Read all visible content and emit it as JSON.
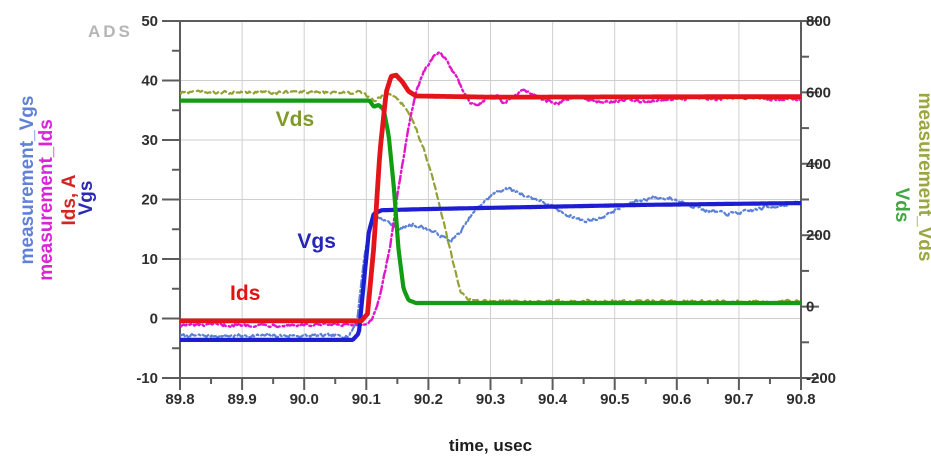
{
  "logo": "ADS",
  "colors": {
    "background": "#ffffff",
    "axis": "#5c5c5c",
    "grid": "#cfcfcf",
    "tick_text": "#2e2e2e",
    "logo_gray": "#b5b5b5"
  },
  "axes": {
    "x": {
      "label": "time, usec",
      "min": 89.8,
      "max": 90.8,
      "ticks": [
        "89.8",
        "89.9",
        "90.0",
        "90.1",
        "90.2",
        "90.3",
        "90.4",
        "90.5",
        "90.6",
        "90.7",
        "90.8"
      ],
      "minor_step": 0.05
    },
    "y_left": {
      "min": -10,
      "max": 50,
      "ticks": [
        "50",
        "40",
        "30",
        "20",
        "10",
        "0",
        "-10"
      ],
      "minor_step": 5
    },
    "y_right": {
      "min": -200,
      "max": 800,
      "ticks": [
        "800",
        "600",
        "400",
        "200",
        "0",
        "-200"
      ],
      "minor_step": 100
    }
  },
  "side_labels": {
    "left": [
      {
        "text": "measurement_Vgs",
        "color": "#6181d9"
      },
      {
        "text": "measurement_Ids",
        "color": "#d924d9"
      },
      {
        "text": "Ids, A",
        "color": "#d42424"
      },
      {
        "text": "Vgs",
        "color": "#2a2ab6"
      }
    ],
    "right": [
      {
        "text": "measurement_Vds",
        "color": "#9aa63e"
      },
      {
        "text": "Vds",
        "color": "#43a543"
      }
    ]
  },
  "annotations": [
    {
      "text": "Vds",
      "color": "#7f9a2b",
      "t": 89.985,
      "value": 33.5,
      "axis": "left"
    },
    {
      "text": "Vgs",
      "color": "#2525b8",
      "t": 90.02,
      "value": 13.0,
      "axis": "left"
    },
    {
      "text": "Ids",
      "color": "#e31212",
      "t": 89.905,
      "value": 4.3,
      "axis": "left"
    }
  ],
  "chart_data": {
    "type": "line",
    "title": "",
    "xlabel": "time, usec",
    "x_range": [
      89.8,
      90.8
    ],
    "y_left_range": [
      -10,
      50
    ],
    "y_right_range": [
      -200,
      800
    ],
    "grid": true,
    "series": [
      {
        "name": "measurement_Vgs",
        "axis": "left",
        "color": "#5b80d8",
        "width": 2.2,
        "dash": "7 3 2 3",
        "noise": 0.45,
        "points": [
          [
            89.8,
            -2.9
          ],
          [
            90.072,
            -2.9
          ],
          [
            90.085,
            -0.5
          ],
          [
            90.095,
            9
          ],
          [
            90.105,
            15.5
          ],
          [
            90.115,
            17.3
          ],
          [
            90.135,
            16.2
          ],
          [
            90.155,
            15.0
          ],
          [
            90.175,
            15.8
          ],
          [
            90.195,
            15.2
          ],
          [
            90.215,
            14.2
          ],
          [
            90.235,
            13.0
          ],
          [
            90.252,
            14.5
          ],
          [
            90.268,
            17.2
          ],
          [
            90.285,
            19.2
          ],
          [
            90.305,
            21.0
          ],
          [
            90.325,
            21.9
          ],
          [
            90.345,
            21.2
          ],
          [
            90.362,
            20.4
          ],
          [
            90.378,
            19.9
          ],
          [
            90.395,
            19.0
          ],
          [
            90.42,
            17.6
          ],
          [
            90.45,
            16.4
          ],
          [
            90.475,
            16.8
          ],
          [
            90.5,
            18.2
          ],
          [
            90.53,
            19.6
          ],
          [
            90.56,
            20.3
          ],
          [
            90.59,
            20.2
          ],
          [
            90.62,
            19.2
          ],
          [
            90.65,
            18.1
          ],
          [
            90.68,
            17.6
          ],
          [
            90.71,
            17.9
          ],
          [
            90.74,
            18.6
          ],
          [
            90.77,
            19.1
          ],
          [
            90.8,
            19.5
          ]
        ]
      },
      {
        "name": "measurement_Ids",
        "axis": "left",
        "color": "#e414c9",
        "width": 2.4,
        "dash": "8 3 2 3",
        "noise": 0.4,
        "points": [
          [
            89.8,
            -1.1
          ],
          [
            90.096,
            -1.1
          ],
          [
            90.108,
            -0.3
          ],
          [
            90.122,
            3.5
          ],
          [
            90.138,
            12
          ],
          [
            90.152,
            22
          ],
          [
            90.166,
            31
          ],
          [
            90.18,
            38
          ],
          [
            90.195,
            42
          ],
          [
            90.208,
            44.2
          ],
          [
            90.218,
            44.6
          ],
          [
            90.228,
            43.8
          ],
          [
            90.24,
            41.5
          ],
          [
            90.255,
            38.5
          ],
          [
            90.268,
            36.3
          ],
          [
            90.282,
            36.0
          ],
          [
            90.295,
            37.2
          ],
          [
            90.31,
            37.6
          ],
          [
            90.322,
            36.2
          ],
          [
            90.338,
            37.4
          ],
          [
            90.352,
            38.2
          ],
          [
            90.365,
            38.0
          ],
          [
            90.38,
            37.0
          ],
          [
            90.395,
            36.4
          ],
          [
            90.41,
            36.2
          ],
          [
            90.428,
            37.0
          ],
          [
            90.445,
            37.4
          ],
          [
            90.46,
            36.6
          ],
          [
            90.478,
            36.3
          ],
          [
            90.495,
            36.4
          ],
          [
            90.515,
            36.8
          ],
          [
            90.535,
            36.5
          ],
          [
            90.558,
            36.4
          ],
          [
            90.58,
            36.8
          ],
          [
            90.605,
            37.0
          ],
          [
            90.635,
            37.1
          ],
          [
            90.665,
            36.8
          ],
          [
            90.695,
            37.2
          ],
          [
            90.725,
            37.1
          ],
          [
            90.755,
            36.9
          ],
          [
            90.78,
            36.8
          ],
          [
            90.8,
            36.8
          ]
        ]
      },
      {
        "name": "measurement_Vds",
        "axis": "right",
        "color": "#94a135",
        "width": 2.2,
        "dash": "6 4",
        "noise": 7,
        "points": [
          [
            89.8,
            600
          ],
          [
            90.088,
            600
          ],
          [
            90.1,
            592
          ],
          [
            90.112,
            576
          ],
          [
            90.124,
            588
          ],
          [
            90.136,
            594
          ],
          [
            90.15,
            585
          ],
          [
            90.165,
            555
          ],
          [
            90.18,
            500
          ],
          [
            90.195,
            430
          ],
          [
            90.21,
            340
          ],
          [
            90.225,
            235
          ],
          [
            90.24,
            120
          ],
          [
            90.252,
            45
          ],
          [
            90.262,
            22
          ],
          [
            90.28,
            16
          ],
          [
            90.35,
            14
          ],
          [
            90.8,
            14
          ]
        ]
      },
      {
        "name": "Vgs",
        "axis": "left",
        "color": "#1d1dd1",
        "width": 4.2,
        "dash": "",
        "noise": 0,
        "points": [
          [
            89.8,
            -3.6
          ],
          [
            90.078,
            -3.6
          ],
          [
            90.088,
            -2.5
          ],
          [
            90.096,
            6
          ],
          [
            90.104,
            14.5
          ],
          [
            90.112,
            17.6
          ],
          [
            90.125,
            18.2
          ],
          [
            90.2,
            18.4
          ],
          [
            90.35,
            18.7
          ],
          [
            90.55,
            19.1
          ],
          [
            90.8,
            19.4
          ]
        ]
      },
      {
        "name": "Vds",
        "axis": "right",
        "color": "#149b14",
        "width": 4.2,
        "dash": "",
        "noise": 0,
        "points": [
          [
            89.8,
            577
          ],
          [
            90.105,
            577
          ],
          [
            90.112,
            560
          ],
          [
            90.12,
            565
          ],
          [
            90.128,
            552
          ],
          [
            90.136,
            480
          ],
          [
            90.144,
            340
          ],
          [
            90.152,
            160
          ],
          [
            90.16,
            50
          ],
          [
            90.168,
            18
          ],
          [
            90.18,
            10
          ],
          [
            90.8,
            10
          ]
        ]
      },
      {
        "name": "Ids",
        "axis": "left",
        "color": "#e3151b",
        "width": 4.8,
        "dash": "",
        "noise": 0,
        "points": [
          [
            89.8,
            -0.4
          ],
          [
            90.092,
            -0.4
          ],
          [
            90.102,
            0.8
          ],
          [
            90.112,
            12
          ],
          [
            90.122,
            28
          ],
          [
            90.132,
            38
          ],
          [
            90.14,
            40.7
          ],
          [
            90.148,
            40.9
          ],
          [
            90.158,
            39.8
          ],
          [
            90.168,
            38.2
          ],
          [
            90.18,
            37.4
          ],
          [
            90.3,
            37.2
          ],
          [
            90.8,
            37.3
          ]
        ]
      }
    ]
  }
}
